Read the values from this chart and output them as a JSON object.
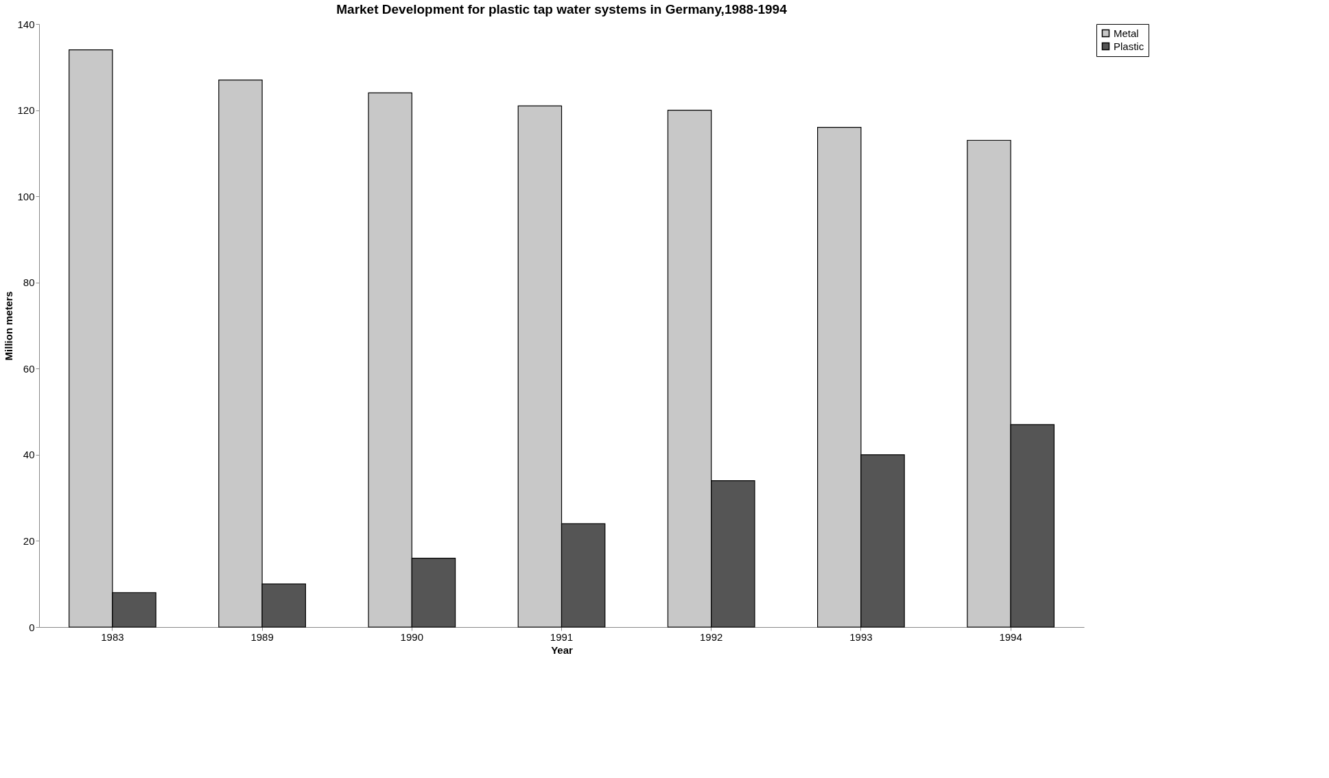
{
  "chart_data": {
    "type": "bar",
    "title": "Market Development for plastic tap water systems in Germany,1988-1994",
    "xlabel": "Year",
    "ylabel": "Million meters",
    "categories": [
      "1983",
      "1989",
      "1990",
      "1991",
      "1992",
      "1993",
      "1994"
    ],
    "series": [
      {
        "name": "Metal",
        "color": "#c8c8c8",
        "values": [
          134,
          127,
          124,
          121,
          120,
          116,
          113
        ]
      },
      {
        "name": "Plastic",
        "color": "#555555",
        "values": [
          8,
          10,
          16,
          24,
          34,
          40,
          47
        ]
      }
    ],
    "ylim": [
      0,
      140
    ],
    "yticks": [
      0,
      20,
      40,
      60,
      80,
      100,
      120,
      140
    ],
    "grid": false,
    "legend": "right"
  }
}
